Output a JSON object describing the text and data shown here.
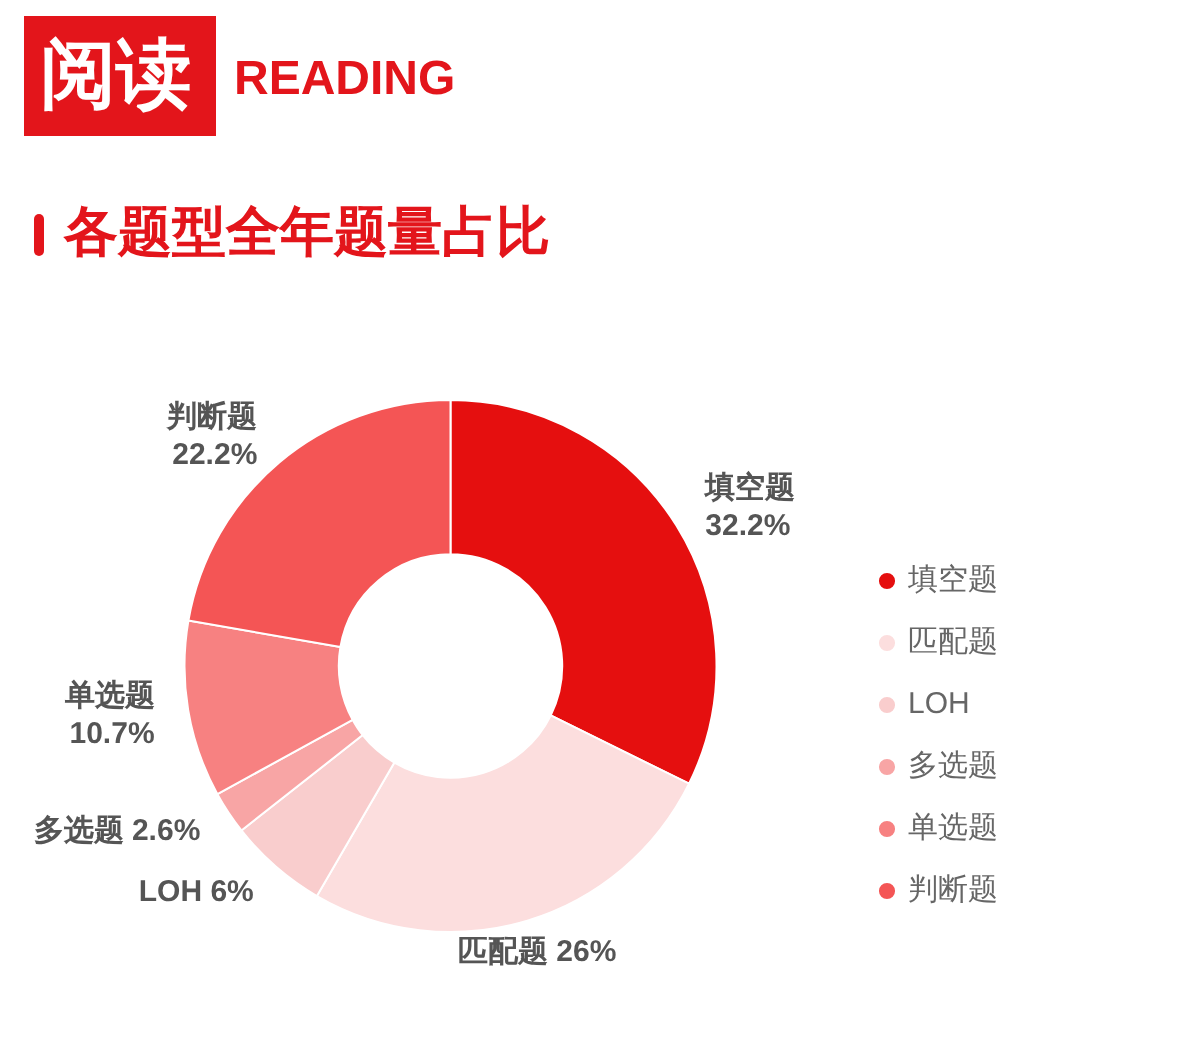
{
  "chart_data": {
    "type": "donut",
    "title": "各题型全年题量占比",
    "annotations": [
      "阅读",
      "READING"
    ],
    "categories": [
      "填空题",
      "匹配题",
      "LOH",
      "多选题",
      "单选题",
      "判断题"
    ],
    "values": [
      32.2,
      26,
      6,
      2.6,
      10.7,
      22.2
    ],
    "colors": [
      "#e50f0f",
      "#fcdede",
      "#f9cdcd",
      "#f8a5a5",
      "#f78181",
      "#f45555"
    ],
    "value_labels": [
      "32.2%",
      "26%",
      "6%",
      "2.6%",
      "10.7%",
      "22.2%"
    ],
    "legend": "right"
  }
}
